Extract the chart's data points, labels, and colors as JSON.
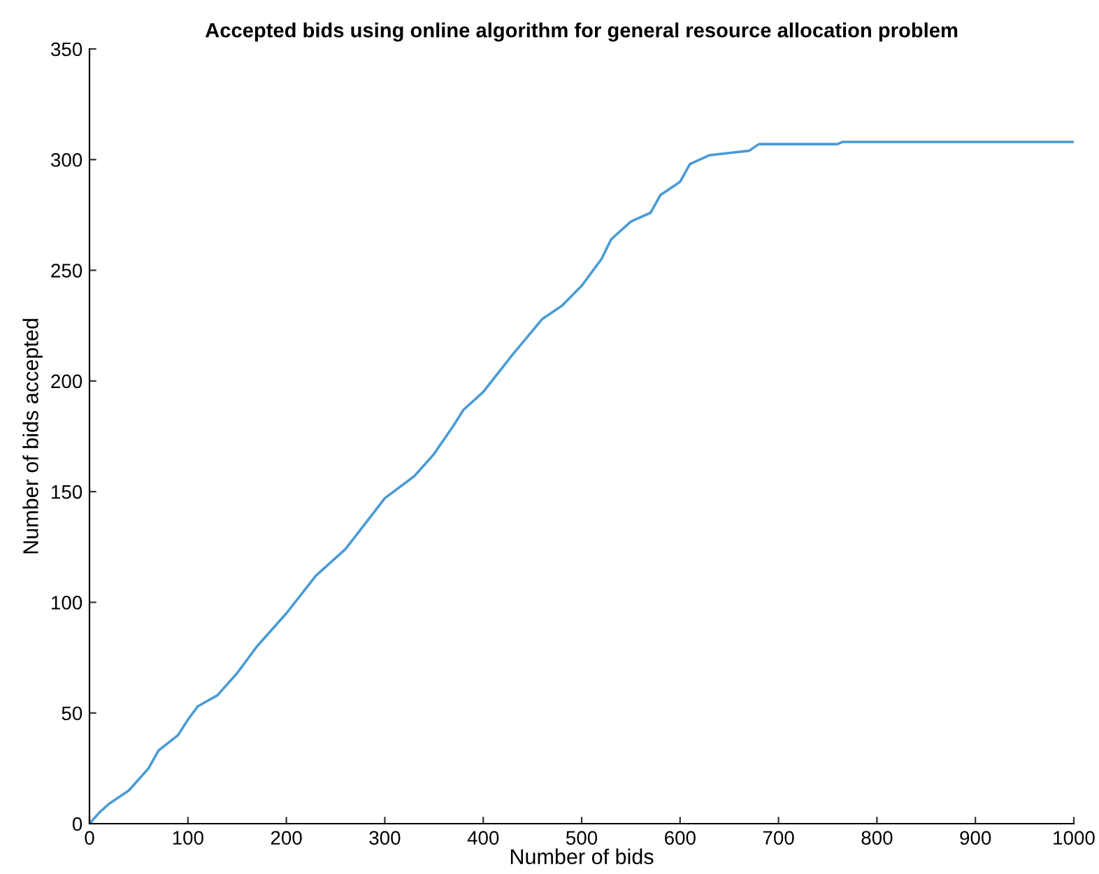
{
  "chart_data": {
    "type": "line",
    "title": "Accepted bids using online algorithm for general resource allocation problem",
    "xlabel": "Number of bids",
    "ylabel": "Number of bids accepted",
    "x": [
      0,
      10,
      20,
      40,
      60,
      70,
      90,
      100,
      110,
      130,
      150,
      170,
      200,
      230,
      260,
      300,
      330,
      350,
      370,
      380,
      400,
      430,
      460,
      480,
      500,
      520,
      530,
      550,
      570,
      580,
      600,
      610,
      630,
      650,
      670,
      680,
      760,
      765,
      1000
    ],
    "series": [
      {
        "color": "#4a9bd6",
        "values": [
          0,
          5,
          9,
          15,
          25,
          33,
          40,
          47,
          53,
          58,
          68,
          80,
          95,
          112,
          124,
          147,
          157,
          167,
          180,
          187,
          195,
          212,
          228,
          234,
          243,
          255,
          264,
          272,
          276,
          284,
          290,
          298,
          302,
          303,
          304,
          307,
          307,
          308,
          308
        ]
      }
    ],
    "xlim": [
      0,
      1000
    ],
    "xticks": [
      0,
      100,
      200,
      300,
      400,
      500,
      600,
      700,
      800,
      900,
      1000
    ],
    "ylim": [
      0,
      350
    ],
    "yticks": [
      0,
      50,
      100,
      150,
      200,
      250,
      300,
      350
    ],
    "grid": false,
    "legend": false,
    "marker": "none",
    "line_style": "solid"
  }
}
